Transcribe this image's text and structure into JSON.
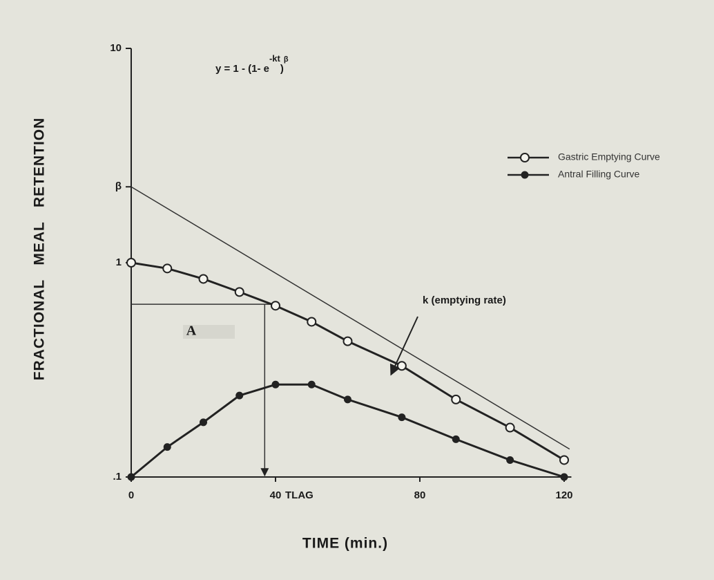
{
  "chart_data": {
    "type": "line",
    "log_y": true,
    "xlabel": "TIME (min.)",
    "ylabel": "FRACTIONAL   MEAL   RETENTION",
    "xlim": [
      0,
      122
    ],
    "ylim": [
      0.1,
      10
    ],
    "xticks": [
      0,
      40,
      80,
      120
    ],
    "yticks": [
      {
        "value": 0.1,
        "label": ".1"
      },
      1,
      {
        "value": 2.26,
        "label": "β"
      },
      10
    ],
    "formula": {
      "main": "y = 1 - (1- e",
      "exp": "-kt",
      "close": ")",
      "power": "β"
    },
    "series": [
      {
        "name": "Gastric Emptying Curve",
        "color": "#222222",
        "marker": "open",
        "x": [
          0,
          10,
          20,
          30,
          40,
          50,
          60,
          75,
          90,
          105,
          120
        ],
        "values": [
          1.0,
          0.94,
          0.84,
          0.73,
          0.63,
          0.53,
          0.43,
          0.33,
          0.23,
          0.17,
          0.12
        ]
      },
      {
        "name": "Antral Filling Curve",
        "color": "#222222",
        "marker": "filled",
        "x": [
          0,
          10,
          20,
          30,
          40,
          50,
          60,
          75,
          90,
          105,
          120
        ],
        "values": [
          0.1,
          0.138,
          0.18,
          0.24,
          0.27,
          0.27,
          0.23,
          0.19,
          0.15,
          0.12,
          0.1
        ]
      }
    ],
    "asymptote": {
      "x": [
        0,
        121.5
      ],
      "values": [
        2.26,
        0.135
      ],
      "label": "k (emptying rate)",
      "arrow_at": [
        72,
        0.3
      ]
    },
    "tlag": {
      "x": 37,
      "y": 0.64,
      "x_end": 40,
      "label": "TLAG",
      "area_label": "A",
      "area_color": "#cc2222"
    }
  }
}
